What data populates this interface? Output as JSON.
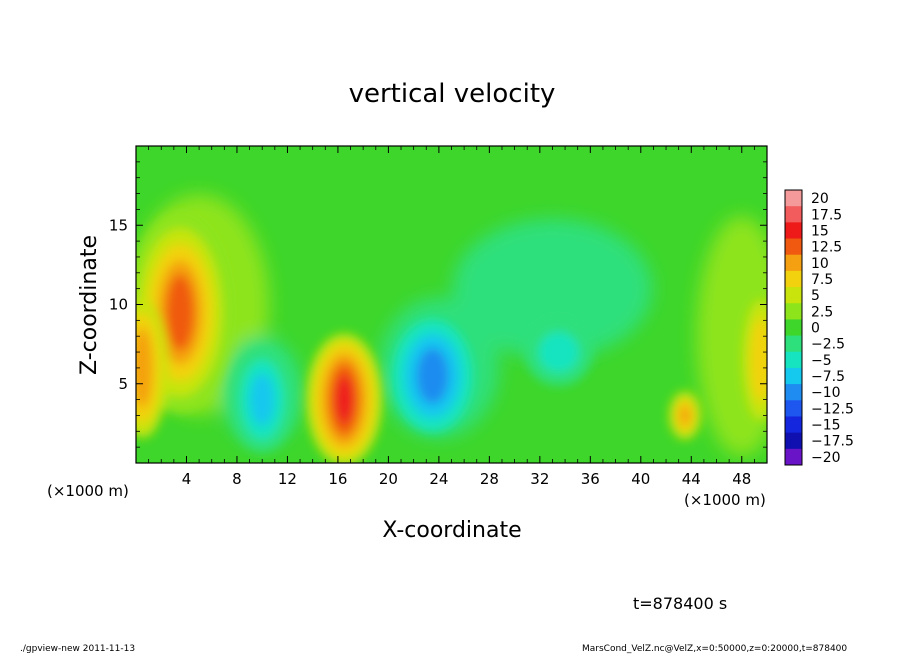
{
  "chart_data": {
    "type": "heatmap",
    "title": "vertical velocity",
    "xlabel": "X-coordinate",
    "ylabel": "Z-coordinate",
    "x_unit_label": "(×1000 m)",
    "x_unit_label_right": "(×1000 m)",
    "xlim": [
      0,
      50
    ],
    "ylim": [
      0,
      20
    ],
    "x_ticks": [
      "4",
      "8",
      "12",
      "16",
      "20",
      "24",
      "28",
      "32",
      "36",
      "40",
      "44",
      "48"
    ],
    "x_tick_values": [
      4,
      8,
      12,
      16,
      20,
      24,
      28,
      32,
      36,
      40,
      44,
      48
    ],
    "y_ticks": [
      "5",
      "10",
      "15"
    ],
    "y_tick_values": [
      5,
      10,
      15
    ],
    "colorbar": {
      "levels": [
        "20",
        "17.5",
        "15",
        "12.5",
        "10",
        "7.5",
        "5",
        "2.5",
        "0",
        "−2.5",
        "−5",
        "−7.5",
        "−10",
        "−12.5",
        "−15",
        "−17.5",
        "−20"
      ],
      "level_values": [
        20,
        17.5,
        15,
        12.5,
        10,
        7.5,
        5,
        2.5,
        0,
        -2.5,
        -5,
        -7.5,
        -10,
        -12.5,
        -15,
        -17.5,
        -20
      ],
      "colors": [
        "#f49a9a",
        "#f25c5c",
        "#ee1a1a",
        "#f05a10",
        "#f4a010",
        "#f2d20e",
        "#c8e40c",
        "#8ee41a",
        "#3ed62a",
        "#2ee07c",
        "#16e4c0",
        "#14c8ee",
        "#1e8cf0",
        "#1e56f0",
        "#1426de",
        "#1010b0",
        "#6a14c8"
      ]
    },
    "features": [
      {
        "x": 3.5,
        "z": 9.5,
        "value": 12.5
      },
      {
        "x": 0.5,
        "z": 6,
        "value": 10
      },
      {
        "x": 16.5,
        "z": 4,
        "value": 15
      },
      {
        "x": 43.5,
        "z": 3,
        "value": 10
      },
      {
        "x": 49.5,
        "z": 6.5,
        "value": 7.5
      },
      {
        "x": 10,
        "z": 4,
        "value": -7.5
      },
      {
        "x": 23.5,
        "z": 5.5,
        "value": -10
      },
      {
        "x": 33.5,
        "z": 7,
        "value": -5
      }
    ]
  },
  "time_label": "t=878400 s",
  "footer_left": "./gpview-new  2011-11-13",
  "footer_right": "MarsCond_VelZ.nc@VelZ,x=0:50000,z=0:20000,t=878400"
}
